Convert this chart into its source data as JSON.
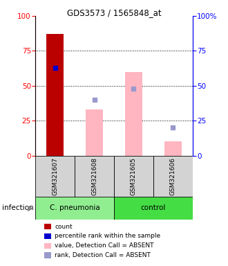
{
  "title": "GDS3573 / 1565848_at",
  "samples": [
    "GSM321607",
    "GSM321608",
    "GSM321605",
    "GSM321606"
  ],
  "bar_left_counts": [
    87,
    null,
    null,
    null
  ],
  "bar_left_color": "#BB0000",
  "bar_right_values": [
    null,
    33,
    60,
    10
  ],
  "bar_right_color": "#FFB6C1",
  "dot_blue": [
    63,
    null,
    null,
    null
  ],
  "dot_blue_color": "#0000CC",
  "dot_lavender": [
    null,
    40,
    48,
    20
  ],
  "dot_lavender_color": "#9999CC",
  "ylim": [
    0,
    100
  ],
  "yticks": [
    0,
    25,
    50,
    75,
    100
  ],
  "group_info": [
    {
      "label": "C. pneumonia",
      "cols": [
        0,
        1
      ],
      "color": "#90EE90"
    },
    {
      "label": "control",
      "cols": [
        2,
        3
      ],
      "color": "#44DD44"
    }
  ],
  "legend_items": [
    {
      "color": "#BB0000",
      "label": "count"
    },
    {
      "color": "#0000CC",
      "label": "percentile rank within the sample"
    },
    {
      "color": "#FFB6C1",
      "label": "value, Detection Call = ABSENT"
    },
    {
      "color": "#9999CC",
      "label": "rank, Detection Call = ABSENT"
    }
  ],
  "panel_bg": "#d3d3d3",
  "infection_label": "infection"
}
